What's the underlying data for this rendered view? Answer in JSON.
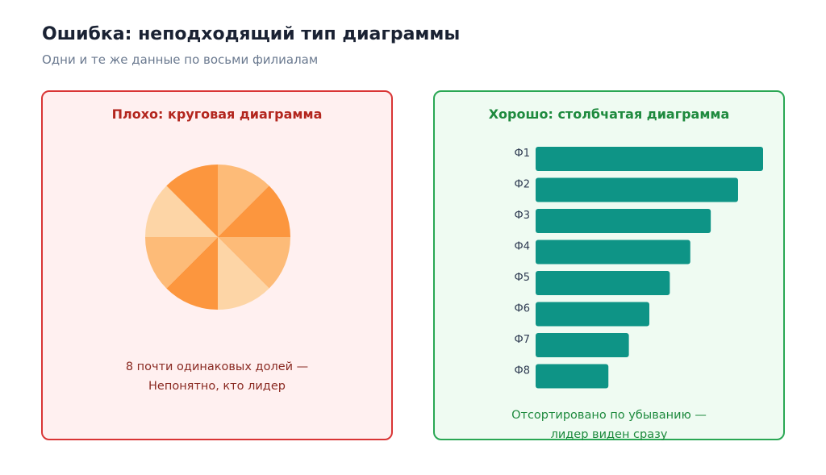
{
  "header": {
    "title": "Ошибка: неподходящий тип диаграммы",
    "subtitle": "Одни и те же данные по восьми филиалам"
  },
  "bad_panel": {
    "title": "Плохо: круговая диаграмма",
    "caption_line1": "8 почти одинаковых долей —",
    "caption_line2": "Непонятно, кто лидер"
  },
  "good_panel": {
    "title": "Хорошо: столбчатая диаграмма",
    "caption_line1": "Отсортировано по убыванию —",
    "caption_line2": "лидер виден сразу"
  },
  "colors": {
    "bad_accent": "#d93535",
    "good_accent": "#2aa754",
    "bar": "#0e9486",
    "pie": [
      "#fdbb78",
      "#fc963e",
      "#fdbb78",
      "#fdd5a6",
      "#fc963e",
      "#fdbb78",
      "#fdd5a6",
      "#fc963e"
    ]
  },
  "chart_data": [
    {
      "type": "pie",
      "title": "Плохо: круговая диаграмма",
      "slices": [
        1,
        1,
        1,
        1,
        1,
        1,
        1,
        1
      ]
    },
    {
      "type": "bar",
      "orientation": "horizontal",
      "title": "Хорошо: столбчатая диаграмма",
      "categories": [
        "Ф1",
        "Ф2",
        "Ф3",
        "Ф4",
        "Ф5",
        "Ф6",
        "Ф7",
        "Ф8"
      ],
      "values": [
        100,
        89,
        77,
        68,
        59,
        50,
        41,
        32
      ],
      "sorted": "descending"
    }
  ]
}
